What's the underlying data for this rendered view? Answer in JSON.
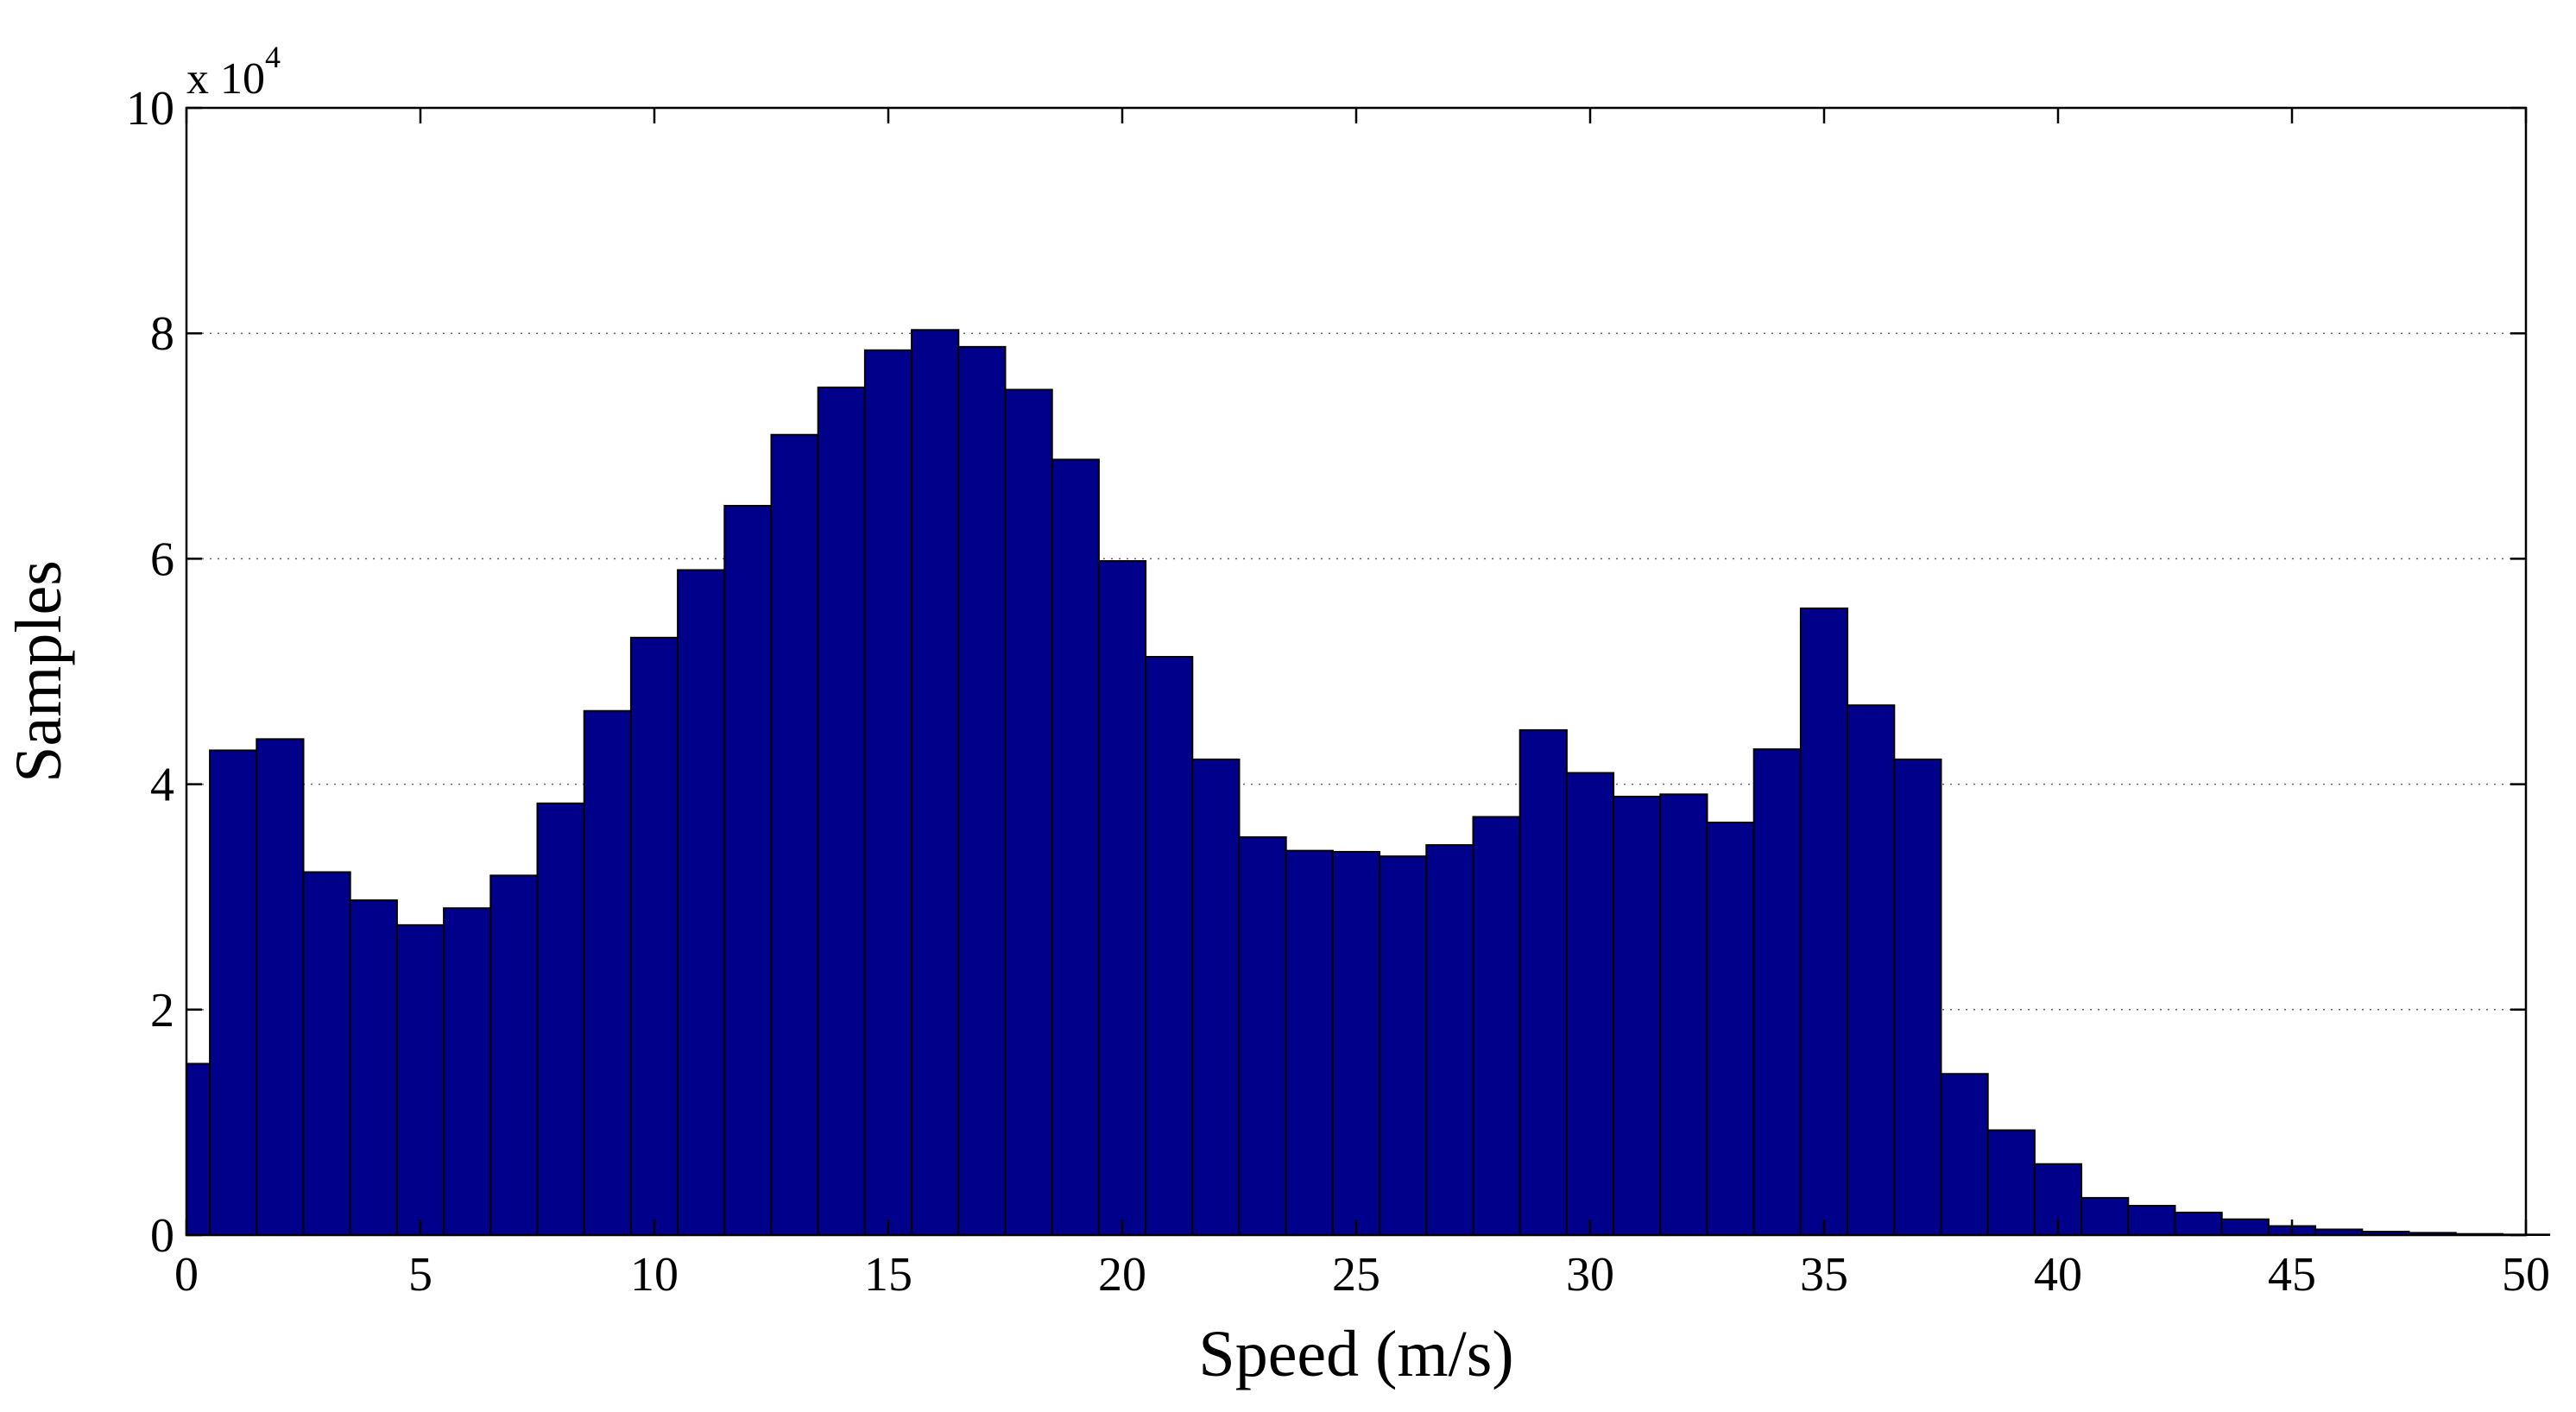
{
  "chart_data": {
    "type": "bar",
    "xlabel": "Speed (m/s)",
    "ylabel": "Samples",
    "y_multiplier": {
      "base": "x 10",
      "exponent": "4"
    },
    "xlim": [
      0,
      50
    ],
    "ylim": [
      0,
      10
    ],
    "x_ticks": [
      "0",
      "5",
      "10",
      "15",
      "20",
      "25",
      "30",
      "35",
      "40",
      "45",
      "50"
    ],
    "x_tick_values": [
      0,
      5,
      10,
      15,
      20,
      25,
      30,
      35,
      40,
      45,
      50
    ],
    "y_ticks": [
      "0",
      "2",
      "4",
      "6",
      "8",
      "10"
    ],
    "y_tick_values": [
      0,
      2,
      4,
      6,
      8,
      10
    ],
    "grid": "horizontal dotted",
    "bar_color": "#00008B",
    "bar_width": 1,
    "x": [
      0,
      1,
      2,
      3,
      4,
      5,
      6,
      7,
      8,
      9,
      10,
      11,
      12,
      13,
      14,
      15,
      16,
      17,
      18,
      19,
      20,
      21,
      22,
      23,
      24,
      25,
      26,
      27,
      28,
      29,
      30,
      31,
      32,
      33,
      34,
      35,
      36,
      37,
      38,
      39,
      40,
      41,
      42,
      43,
      44,
      45,
      46,
      47,
      48,
      49
    ],
    "values": [
      4.3,
      4.4,
      3.22,
      2.97,
      2.75,
      2.9,
      3.19,
      3.83,
      4.65,
      5.3,
      5.9,
      6.47,
      7.1,
      7.52,
      7.85,
      8.03,
      7.88,
      7.5,
      6.88,
      5.98,
      5.13,
      4.22,
      3.53,
      3.41,
      3.4,
      3.36,
      3.46,
      3.71,
      4.48,
      4.1,
      3.89,
      3.91,
      3.66,
      4.31,
      5.56,
      4.7,
      4.22,
      1.43,
      0.93,
      0.63,
      0.33,
      0.26,
      0.2,
      0.14,
      0.08,
      0.05,
      0.03,
      0.02,
      0.01,
      0.005
    ],
    "edge_bar": {
      "x": 0,
      "value": 1.52
    }
  }
}
